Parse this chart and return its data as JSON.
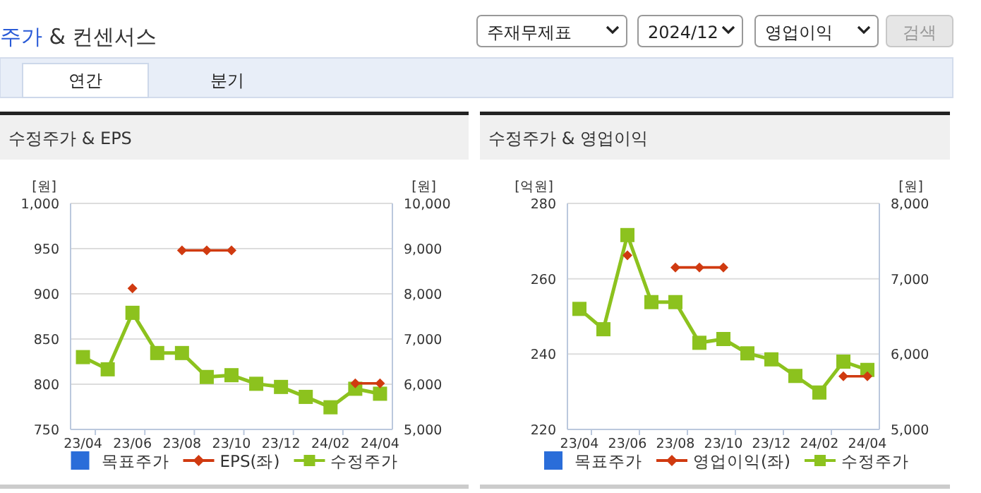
{
  "chart_data": [
    {
      "type": "other",
      "title": "주가 & 컨센서스",
      "annotations": [
        "주재무제표",
        "2024/12",
        "영업이익",
        "검색",
        "연간",
        "분기"
      ]
    },
    {
      "type": "line",
      "title": "수정주가 & EPS",
      "categories": [
        "23/04",
        null,
        "23/06",
        null,
        "23/08",
        null,
        "23/10",
        null,
        "23/12",
        null,
        "24/02",
        null,
        "24/04"
      ],
      "series": [
        {
          "name": "목표주가",
          "type": "scatter",
          "marker": "square",
          "color": "#2a6dd9",
          "values": [
            null,
            null,
            null,
            null,
            null,
            null,
            null,
            null,
            null,
            null,
            null,
            null,
            null
          ]
        },
        {
          "name": "EPS(좌)",
          "type": "line",
          "marker": "diamond",
          "color": "#d03a10",
          "values": [
            null,
            null,
            906,
            null,
            948,
            948,
            948,
            null,
            null,
            null,
            null,
            801,
            801
          ]
        },
        {
          "name": "수정주가",
          "type": "line",
          "marker": "square",
          "axis": "y2",
          "color": "#8cc21e",
          "values": [
            6600,
            6330,
            7580,
            6690,
            6690,
            6160,
            6200,
            6010,
            5940,
            5720,
            5490,
            5900,
            5790
          ]
        }
      ],
      "ylabel": "[원]",
      "y2label": "[원]",
      "ylim": [
        750,
        1000
      ],
      "yticks": [
        750,
        800,
        850,
        900,
        950,
        {
          "value": 1000,
          "label": "1,000"
        }
      ],
      "y2lim": [
        5000,
        10000
      ],
      "y2ticks": [
        {
          "value": 5000,
          "label": "5,000"
        },
        {
          "value": 6000,
          "label": "6,000"
        },
        {
          "value": 7000,
          "label": "7,000"
        },
        {
          "value": 8000,
          "label": "8,000"
        },
        {
          "value": 9000,
          "label": "9,000"
        },
        {
          "value": 10000,
          "label": "10,000"
        }
      ],
      "grid": "y",
      "legend": "bottom"
    },
    {
      "type": "line",
      "title": "수정주가 & 영업이익",
      "categories": [
        "23/04",
        null,
        "23/06",
        null,
        "23/08",
        null,
        "23/10",
        null,
        "23/12",
        null,
        "24/02",
        null,
        "24/04"
      ],
      "series": [
        {
          "name": "목표주가",
          "type": "scatter",
          "marker": "square",
          "color": "#2a6dd9",
          "values": [
            null,
            null,
            null,
            null,
            null,
            null,
            null,
            null,
            null,
            null,
            null,
            null,
            null
          ]
        },
        {
          "name": "영업이익(좌)",
          "type": "line",
          "marker": "diamond",
          "color": "#d03a10",
          "values": [
            null,
            null,
            266.2,
            null,
            263,
            263,
            263,
            null,
            null,
            null,
            null,
            234.1,
            234.1
          ]
        },
        {
          "name": "수정주가",
          "type": "line",
          "marker": "square",
          "axis": "y2",
          "color": "#8cc21e",
          "values": [
            6600,
            6330,
            7580,
            6690,
            6690,
            6150,
            6200,
            6010,
            5930,
            5710,
            5490,
            5900,
            5790
          ]
        }
      ],
      "ylabel": "[억원]",
      "y2label": "[원]",
      "ylim": [
        220,
        280
      ],
      "yticks": [
        220,
        240,
        260,
        280
      ],
      "y2lim": [
        5000,
        8000
      ],
      "y2ticks": [
        {
          "value": 5000,
          "label": "5,000"
        },
        {
          "value": 6000,
          "label": "6,000"
        },
        {
          "value": 7000,
          "label": "7,000"
        },
        {
          "value": 8000,
          "label": "8,000"
        }
      ],
      "grid": "y",
      "legend": "bottom"
    }
  ]
}
